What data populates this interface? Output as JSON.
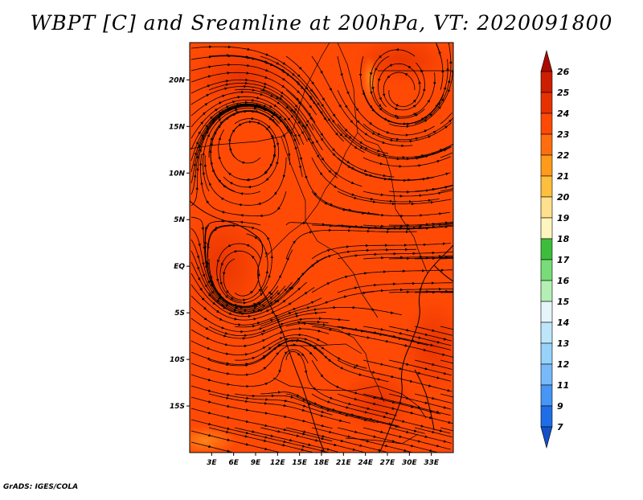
{
  "title": "WBPT [C] and Sreamline at 200hPa, VT: 2020091800",
  "credit": "GrADS: IGES/COLA",
  "map": {
    "lon_range": [
      0,
      36
    ],
    "lat_range": [
      -20,
      24
    ],
    "lon_ticks": [
      "3E",
      "6E",
      "9E",
      "12E",
      "15E",
      "18E",
      "21E",
      "24E",
      "27E",
      "30E",
      "33E"
    ],
    "lon_tick_values": [
      3,
      6,
      9,
      12,
      15,
      18,
      21,
      24,
      27,
      30,
      33
    ],
    "lat_ticks": [
      "20N",
      "15N",
      "10N",
      "5N",
      "EQ",
      "5S",
      "10S",
      "15S"
    ],
    "lat_tick_values": [
      20,
      15,
      10,
      5,
      0,
      -5,
      -10,
      -15
    ],
    "background_color": "#ff4a06"
  },
  "colorbar": {
    "labels": [
      "26",
      "25",
      "24",
      "23",
      "22",
      "21",
      "20",
      "19",
      "18",
      "17",
      "16",
      "15",
      "14",
      "13",
      "12",
      "11",
      "9",
      "7"
    ],
    "colors": [
      "#aa0a00",
      "#cc1e00",
      "#e63200",
      "#ff4a06",
      "#ff6e0e",
      "#ff9a1a",
      "#ffbe3c",
      "#ffe08c",
      "#fff5be",
      "#3cbe3c",
      "#78dc78",
      "#b4f0b4",
      "#e6f5fa",
      "#bee6fa",
      "#96d2fa",
      "#78b9fa",
      "#4696f5",
      "#1e6ee6",
      "#1450c8"
    ]
  }
}
